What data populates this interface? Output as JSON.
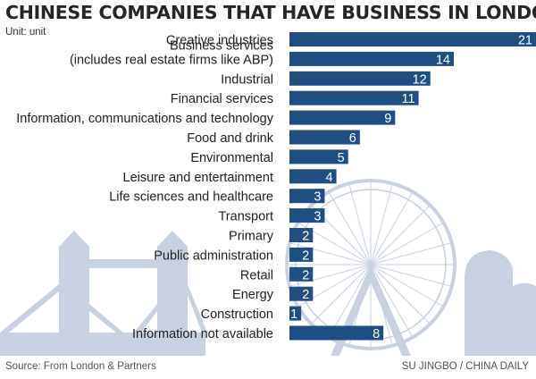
{
  "header": {
    "title": "CHINESE COMPANIES THAT HAVE BUSINESS IN LONDON",
    "unit": "Unit: unit"
  },
  "footer": {
    "source": "Source: From London & Partners",
    "credit": "SU JINGBO / CHINA DAILY"
  },
  "colors": {
    "bar": "#1f4e82",
    "skyline": "#c7d1e2",
    "label": "#222222"
  },
  "chart_data": {
    "type": "bar",
    "orientation": "horizontal",
    "title": "CHINESE COMPANIES THAT HAVE BUSINESS IN LONDON",
    "unit": "unit",
    "categories": [
      [
        "Creative industries"
      ],
      [
        "Business services",
        "(includes real estate firms like ABP)"
      ],
      [
        "Industrial"
      ],
      [
        "Financial services"
      ],
      [
        "Information, communications and technology"
      ],
      [
        "Food and drink"
      ],
      [
        "Environmental"
      ],
      [
        "Leisure and entertainment"
      ],
      [
        "Life sciences and healthcare"
      ],
      [
        "Transport"
      ],
      [
        "Primary"
      ],
      [
        "Public administration"
      ],
      [
        "Retail"
      ],
      [
        "Energy"
      ],
      [
        "Construction"
      ],
      [
        "Information not available"
      ]
    ],
    "values": [
      21,
      14,
      12,
      11,
      9,
      6,
      5,
      4,
      3,
      3,
      2,
      2,
      2,
      2,
      1,
      8
    ],
    "xlim": [
      0,
      21
    ]
  }
}
